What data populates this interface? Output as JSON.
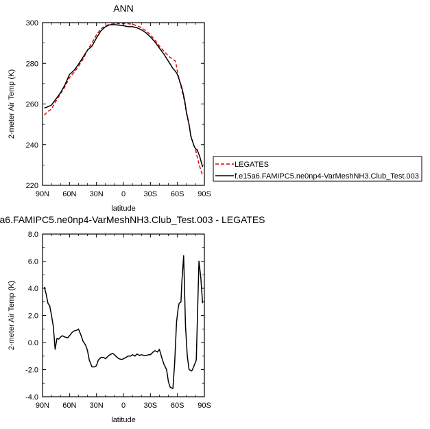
{
  "chart_data": [
    {
      "type": "line",
      "title": "ANN",
      "xlabel": "latitude",
      "ylabel": "2-meter Air Temp (K)",
      "xlim": [
        90,
        -90
      ],
      "ylim": [
        220,
        300
      ],
      "xticks": [
        {
          "value": 90,
          "label": "90N"
        },
        {
          "value": 60,
          "label": "60N"
        },
        {
          "value": 30,
          "label": "30N"
        },
        {
          "value": 0,
          "label": "0"
        },
        {
          "value": -30,
          "label": "30S"
        },
        {
          "value": -60,
          "label": "60S"
        },
        {
          "value": -90,
          "label": "90S"
        }
      ],
      "yticks": [
        {
          "value": 220,
          "label": "220"
        },
        {
          "value": 240,
          "label": "240"
        },
        {
          "value": 260,
          "label": "260"
        },
        {
          "value": 280,
          "label": "280"
        },
        {
          "value": 300,
          "label": "300"
        }
      ],
      "legend_placement": "right",
      "series": [
        {
          "name": "LEGATES",
          "color": "#e00000",
          "dash": "dashed",
          "x": [
            88,
            85,
            80,
            75,
            70,
            65,
            60,
            55,
            50,
            45,
            40,
            35,
            30,
            25,
            20,
            15,
            10,
            5,
            0,
            -5,
            -10,
            -15,
            -20,
            -25,
            -30,
            -35,
            -40,
            -45,
            -50,
            -55,
            -58,
            -60,
            -62,
            -65,
            -68,
            -70,
            -73,
            -75,
            -78,
            -80,
            -82,
            -85,
            -88
          ],
          "values": [
            254.5,
            256,
            257.5,
            261.5,
            265,
            268.5,
            273,
            275.5,
            278.5,
            282,
            286.5,
            290,
            294,
            297,
            298.5,
            299.2,
            299.5,
            299.5,
            299.5,
            299.5,
            299.2,
            298.5,
            297.5,
            296,
            294,
            291.5,
            288.5,
            286,
            283.5,
            282,
            281,
            276,
            272,
            267,
            261,
            255.5,
            249.5,
            244.5,
            240,
            238,
            234,
            229,
            225
          ]
        },
        {
          "name": "f.e15a6.FAMIPC5.ne0np4-VarMeshNH3.Club_Test.003",
          "color": "#000000",
          "dash": "solid",
          "x": [
            88,
            85,
            80,
            75,
            70,
            65,
            60,
            55,
            50,
            45,
            40,
            35,
            30,
            25,
            20,
            15,
            10,
            5,
            0,
            -5,
            -10,
            -15,
            -20,
            -25,
            -30,
            -35,
            -40,
            -45,
            -50,
            -55,
            -58,
            -60,
            -62,
            -65,
            -68,
            -70,
            -73,
            -75,
            -78,
            -80,
            -82,
            -85,
            -88
          ],
          "values": [
            258,
            258.5,
            259.5,
            262.5,
            265.5,
            269.5,
            274.5,
            276.5,
            279.5,
            283,
            286.5,
            288.5,
            292.5,
            296,
            298,
            299,
            299,
            298.8,
            298.5,
            298,
            298,
            297.5,
            296.5,
            295,
            293,
            290.5,
            287.5,
            284.5,
            281,
            277.5,
            276,
            274.5,
            272,
            268,
            262,
            256,
            250,
            244,
            240,
            238,
            237.5,
            234,
            229
          ]
        }
      ]
    },
    {
      "type": "line",
      "title": "a6.FAMIPC5.ne0np4-VarMeshNH3.Club_Test.003 - LEGATES",
      "xlabel": "latitude",
      "ylabel": "2-meter Air Temp (K)",
      "xlim": [
        90,
        -90
      ],
      "ylim": [
        -4,
        8
      ],
      "xticks": [
        {
          "value": 90,
          "label": "90N"
        },
        {
          "value": 60,
          "label": "60N"
        },
        {
          "value": 30,
          "label": "30N"
        },
        {
          "value": 0,
          "label": "0"
        },
        {
          "value": -30,
          "label": "30S"
        },
        {
          "value": -60,
          "label": "60S"
        },
        {
          "value": -90,
          "label": "90S"
        }
      ],
      "yticks": [
        {
          "value": -4,
          "label": "-4.0"
        },
        {
          "value": -2,
          "label": "-2.0"
        },
        {
          "value": 0,
          "label": "0.0"
        },
        {
          "value": 2,
          "label": "2.0"
        },
        {
          "value": 4,
          "label": "4.0"
        },
        {
          "value": 6,
          "label": "6.0"
        },
        {
          "value": 8,
          "label": "8.0"
        }
      ],
      "series": [
        {
          "color": "#000000",
          "dash": "solid",
          "x": [
            88,
            86,
            84,
            82,
            80,
            78,
            76,
            74,
            72,
            70,
            68,
            65,
            62,
            60,
            57,
            55,
            52,
            50,
            47,
            45,
            42,
            40,
            38,
            35,
            32,
            30,
            28,
            25,
            22,
            20,
            17,
            15,
            12,
            10,
            7,
            5,
            2,
            0,
            -3,
            -5,
            -8,
            -10,
            -13,
            -15,
            -18,
            -20,
            -23,
            -25,
            -28,
            -30,
            -33,
            -35,
            -38,
            -40,
            -43,
            -45,
            -48,
            -50,
            -52,
            -55,
            -57,
            -59,
            -61,
            -62,
            -64,
            -65,
            -67,
            -69,
            -71,
            -73,
            -76,
            -78,
            -81,
            -84,
            -86,
            -88
          ],
          "values": [
            4.1,
            3.6,
            2.9,
            2.7,
            2.0,
            1.2,
            -0.5,
            0.3,
            0.25,
            0.4,
            0.5,
            0.4,
            0.35,
            0.5,
            0.75,
            0.85,
            0.9,
            1.0,
            0.5,
            0.1,
            -0.2,
            -0.6,
            -1.3,
            -1.8,
            -1.8,
            -1.7,
            -1.3,
            -1.1,
            -1.1,
            -1.2,
            -1.0,
            -0.9,
            -0.8,
            -0.9,
            -1.1,
            -1.2,
            -1.25,
            -1.2,
            -1.1,
            -1.0,
            -1.0,
            -0.9,
            -1.0,
            -0.85,
            -0.95,
            -0.9,
            -0.95,
            -0.95,
            -0.9,
            -0.9,
            -0.7,
            -0.6,
            -0.7,
            -0.5,
            -1.2,
            -1.6,
            -2.0,
            -2.9,
            -3.3,
            -3.4,
            -1.5,
            1.5,
            2.6,
            2.9,
            3.0,
            4.5,
            6.4,
            1.2,
            -1.0,
            -2.0,
            -2.1,
            -1.8,
            -1.3,
            6.0,
            4.8,
            2.9
          ]
        }
      ]
    }
  ]
}
